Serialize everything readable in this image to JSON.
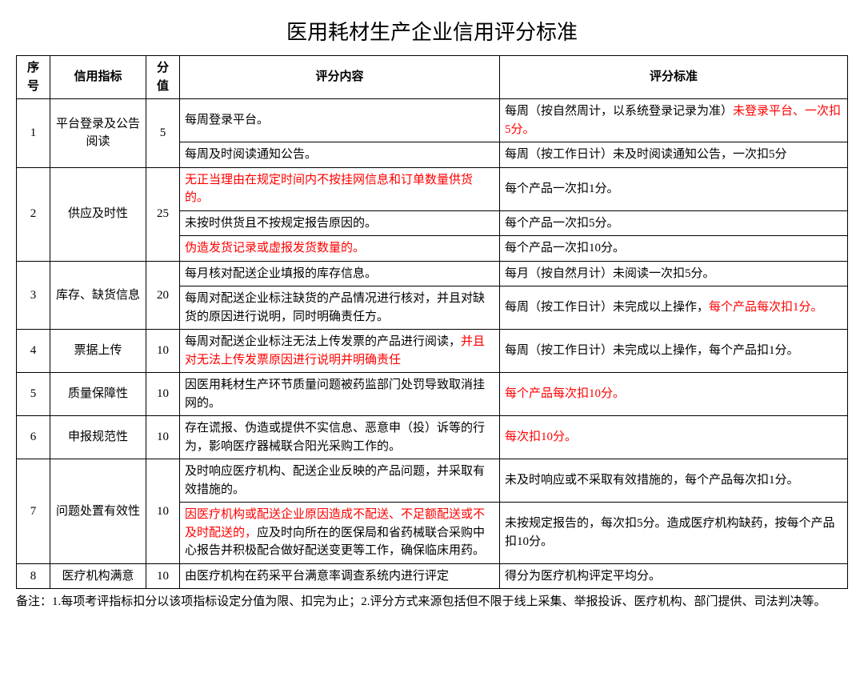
{
  "title": "医用耗材生产企业信用评分标准",
  "headers": {
    "seq": "序号",
    "indicator": "信用指标",
    "score": "分值",
    "content": "评分内容",
    "standard": "评分标准"
  },
  "rows": [
    {
      "seq": "1",
      "indicator": "平台登录及公告\n阅读",
      "score": "5",
      "sub": [
        {
          "content": [
            {
              "t": "每周登录平台。"
            }
          ],
          "standard": [
            {
              "t": "每周（按自然周计，以系统登录记录为准）"
            },
            {
              "t": "未登录平台、一次扣5分。",
              "red": true
            }
          ]
        },
        {
          "content": [
            {
              "t": "每周及时阅读通知公告。"
            }
          ],
          "standard": [
            {
              "t": "每周（按工作日计）未及时阅读通知公告，一次扣5分"
            }
          ]
        }
      ]
    },
    {
      "seq": "2",
      "indicator": "供应及时性",
      "score": "25",
      "sub": [
        {
          "content": [
            {
              "t": "无正当理由在规定时间内不按挂网信息和订单数量供货的。",
              "red": true
            }
          ],
          "standard": [
            {
              "t": "每个产品一次扣1分。"
            }
          ]
        },
        {
          "content": [
            {
              "t": "未按时供货且不按规定报告原因的。"
            }
          ],
          "standard": [
            {
              "t": "每个产品一次扣5分。"
            }
          ]
        },
        {
          "content": [
            {
              "t": "伪造发货记录或虚报发货数量的。",
              "red": true
            }
          ],
          "standard": [
            {
              "t": "每个产品一次扣10分。"
            }
          ]
        }
      ]
    },
    {
      "seq": "3",
      "indicator": "库存、缺货信息",
      "score": "20",
      "sub": [
        {
          "content": [
            {
              "t": "每月核对配送企业填报的库存信息。"
            }
          ],
          "standard": [
            {
              "t": "每月（按自然月计）未阅读一次扣5分。"
            }
          ]
        },
        {
          "content": [
            {
              "t": "每周对配送企业标注缺货的产品情况进行核对，并且对缺货的原因进行说明，同时明确责任方。"
            }
          ],
          "standard": [
            {
              "t": "每周（按工作日计）未完成以上操作，"
            },
            {
              "t": "每个产品每次扣1分。",
              "red": true
            }
          ]
        }
      ]
    },
    {
      "seq": "4",
      "indicator": "票据上传",
      "score": "10",
      "sub": [
        {
          "content": [
            {
              "t": "每周对配送企业标注无法上传发票的产品进行阅读，"
            },
            {
              "t": "并且对无法上传发票原因进行说明并明确责任",
              "red": true
            }
          ],
          "standard": [
            {
              "t": "每周（按工作日计）未完成以上操作，每个产品扣1分。"
            }
          ]
        }
      ]
    },
    {
      "seq": "5",
      "indicator": "质量保障性",
      "score": "10",
      "sub": [
        {
          "content": [
            {
              "t": "因医用耗材生产环节质量问题被药监部门处罚导致取消挂网的。"
            }
          ],
          "standard": [
            {
              "t": "每个产品每次扣10分。",
              "red": true
            }
          ]
        }
      ]
    },
    {
      "seq": "6",
      "indicator": "申报规范性",
      "score": "10",
      "sub": [
        {
          "content": [
            {
              "t": "存在谎报、伪造或提供不实信息、恶意申（投）诉等的行为，影响医疗器械联合阳光采购工作的。"
            }
          ],
          "standard": [
            {
              "t": "每次扣10分。",
              "red": true
            }
          ]
        }
      ]
    },
    {
      "seq": "7",
      "indicator": "问题处置有效性",
      "score": "10",
      "sub": [
        {
          "content": [
            {
              "t": "及时响应医疗机构、配送企业反映的产品问题，并采取有效措施的。"
            }
          ],
          "standard": [
            {
              "t": "未及时响应或不采取有效措施的，每个产品每次扣1分。"
            }
          ]
        },
        {
          "content": [
            {
              "t": "因医疗机构或配送企业原因造成不配送、不足额配送或不及时配送的，",
              "red": true
            },
            {
              "t": "应及时向所在的医保局和省药械联合采购中心报告并积极配合做好配送变更等工作，确保临床用药。"
            }
          ],
          "standard": [
            {
              "t": "未按规定报告的，每次扣5分。造成医疗机构缺药，按每个产品扣10分。"
            }
          ]
        }
      ]
    },
    {
      "seq": "8",
      "indicator": "医疗机构满意",
      "score": "10",
      "sub": [
        {
          "content": [
            {
              "t": "由医疗机构在药采平台满意率调查系统内进行评定"
            }
          ],
          "standard": [
            {
              "t": "得分为医疗机构评定平均分。"
            }
          ]
        }
      ]
    }
  ],
  "note": "备注：1.每项考评指标扣分以该项指标设定分值为限、扣完为止；2.评分方式来源包括但不限于线上采集、举报投诉、医疗机构、部门提供、司法判决等。"
}
